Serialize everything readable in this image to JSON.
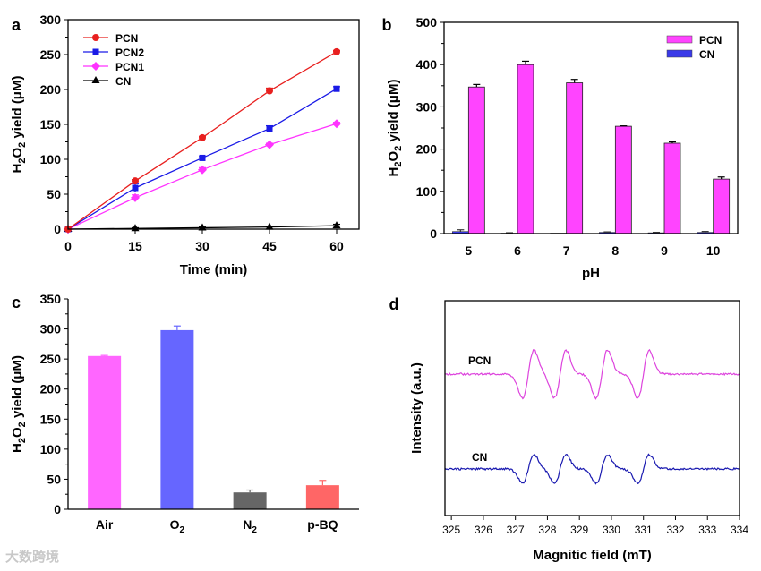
{
  "watermark": "大数跨境",
  "chart_data": [
    {
      "panel": "a",
      "type": "line",
      "xlabel": "Time (min)",
      "ylabel": "H2O2 yield (μM)",
      "xlim": [
        0,
        65
      ],
      "ylim": [
        0,
        300
      ],
      "xticks": [
        0,
        15,
        30,
        45,
        60
      ],
      "yticks": [
        0,
        50,
        100,
        150,
        200,
        250,
        300
      ],
      "legend": "top-left",
      "x": [
        0,
        15,
        30,
        45,
        60
      ],
      "series": [
        {
          "name": "PCN",
          "color": "#e8201f",
          "marker": "circle",
          "values": [
            0,
            69,
            131,
            198,
            254
          ],
          "err": [
            0,
            2,
            2,
            4,
            2
          ]
        },
        {
          "name": "PCN2",
          "color": "#1a1ae6",
          "marker": "square",
          "values": [
            0,
            59,
            102,
            144,
            201
          ],
          "err": [
            0,
            6,
            2,
            4,
            3
          ]
        },
        {
          "name": "PCN1",
          "color": "#ff33ff",
          "marker": "diamond",
          "values": [
            0,
            45,
            85,
            121,
            151
          ],
          "err": [
            0,
            4,
            3,
            2,
            2
          ]
        },
        {
          "name": "CN",
          "color": "#000000",
          "marker": "triangle",
          "values": [
            0,
            1,
            2,
            3,
            5
          ],
          "err": [
            0,
            1,
            1,
            1,
            2
          ]
        }
      ]
    },
    {
      "panel": "b",
      "type": "bar",
      "xlabel": "pH",
      "ylabel": "H2O2 yield (μM)",
      "ylim": [
        0,
        500
      ],
      "yticks": [
        0,
        100,
        200,
        300,
        400,
        500
      ],
      "legend": "top-right",
      "categories": [
        "5",
        "6",
        "7",
        "8",
        "9",
        "10"
      ],
      "series": [
        {
          "name": "PCN",
          "color": "#ff44ff",
          "values": [
            347,
            400,
            357,
            254,
            214,
            129
          ],
          "err": [
            6,
            8,
            8,
            1,
            3,
            5
          ]
        },
        {
          "name": "CN",
          "color": "#3a3ae8",
          "values": [
            5,
            1,
            1,
            3,
            2,
            3
          ],
          "err": [
            4,
            1,
            0,
            1,
            1,
            2
          ]
        }
      ]
    },
    {
      "panel": "c",
      "type": "bar",
      "xlabel": "",
      "ylabel": "H2O2 yield (μM)",
      "ylim": [
        0,
        350
      ],
      "yticks": [
        0,
        50,
        100,
        150,
        200,
        250,
        300,
        350
      ],
      "categories": [
        "Air",
        "O2",
        "N2",
        "p-BQ"
      ],
      "values": [
        255,
        298,
        28,
        40
      ],
      "err": [
        1,
        7,
        4,
        8
      ],
      "colors": [
        "#ff66ff",
        "#6666ff",
        "#666666",
        "#ff6666"
      ]
    },
    {
      "panel": "d",
      "type": "line",
      "xlabel": "Magnitic field (mT)",
      "ylabel": "Intensity (a.u.)",
      "xlim": [
        324.8,
        334
      ],
      "xticks": [
        325,
        326,
        327,
        328,
        329,
        330,
        331,
        332,
        333,
        334
      ],
      "series": [
        {
          "name": "PCN",
          "color": "#dd44dd",
          "lines_mT": [
            327.4,
            328.4,
            329.7,
            331.0
          ],
          "amplitude": 1.0
        },
        {
          "name": "CN",
          "color": "#1a1ab0",
          "lines_mT": [
            327.4,
            328.4,
            329.7,
            331.0
          ],
          "amplitude": 0.6
        }
      ]
    }
  ]
}
